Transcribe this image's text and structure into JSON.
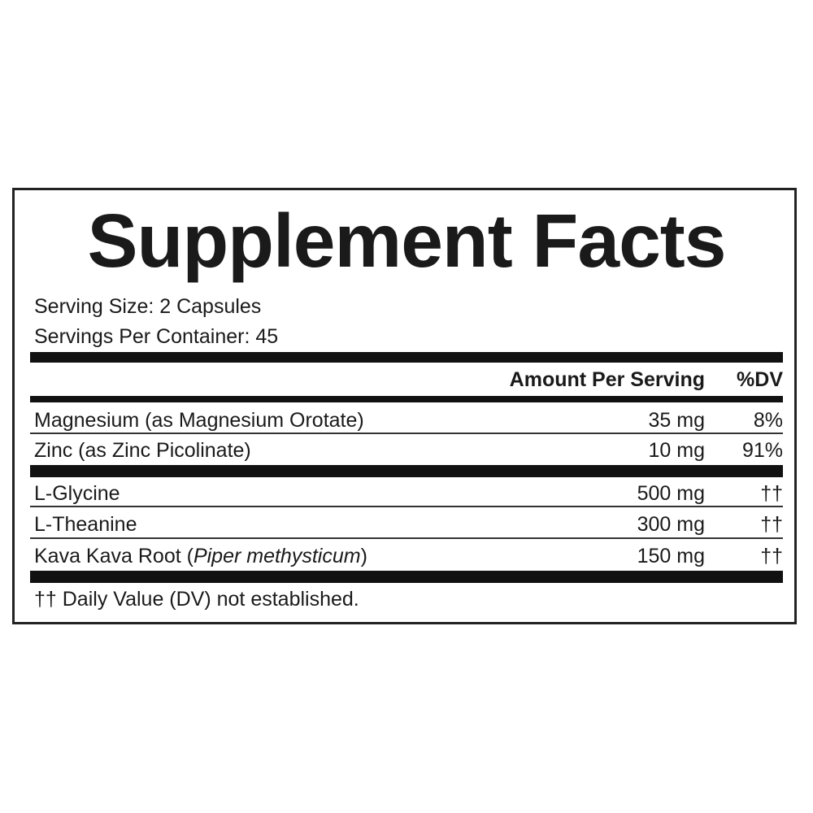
{
  "title": "Supplement Facts",
  "serving_size": "Serving Size: 2 Capsules",
  "servings_per_container": "Servings Per Container: 45",
  "header": {
    "amount": "Amount Per Serving",
    "dv": "%DV"
  },
  "rows": [
    {
      "name": "Magnesium (as Magnesium Orotate)",
      "amount": "35 mg",
      "dv": "8%"
    },
    {
      "name": "Zinc (as Zinc Picolinate)",
      "amount": "10 mg",
      "dv": "91%"
    },
    {
      "name": "L-Glycine",
      "amount": "500 mg",
      "dv": "††"
    },
    {
      "name": "L-Theanine",
      "amount": "300 mg",
      "dv": "††"
    },
    {
      "name": "Kava Kava Root (",
      "name_italic": "Piper methysticum",
      "name_end": ")",
      "amount": "150 mg",
      "dv": "††"
    }
  ],
  "footnote": "†† Daily Value (DV) not established."
}
